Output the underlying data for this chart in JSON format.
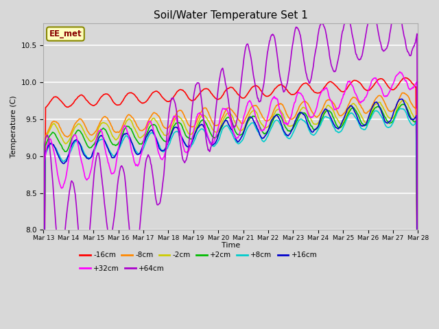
{
  "title": "Soil/Water Temperature Set 1",
  "xlabel": "Time",
  "ylabel": "Temperature (C)",
  "ylim": [
    8.0,
    10.8
  ],
  "n_days": 15,
  "background_color": "#d8d8d8",
  "plot_bg_color": "#d8d8d8",
  "grid_color": "#ffffff",
  "label_box_text": "EE_met",
  "label_box_facecolor": "#ffffc0",
  "label_box_edgecolor": "#888800",
  "series": [
    {
      "label": "-16cm",
      "color": "#ff0000"
    },
    {
      "label": "-8cm",
      "color": "#ff8800"
    },
    {
      "label": "-2cm",
      "color": "#cccc00"
    },
    {
      "label": "+2cm",
      "color": "#00bb00"
    },
    {
      "label": "+8cm",
      "color": "#00cccc"
    },
    {
      "label": "+16cm",
      "color": "#0000cc"
    },
    {
      "label": "+32cm",
      "color": "#ff00ff"
    },
    {
      "label": "+64cm",
      "color": "#aa00cc"
    }
  ],
  "xtick_labels": [
    "Mar 13",
    "Mar 14",
    "Mar 15",
    "Mar 16",
    "Mar 17",
    "Mar 18",
    "Mar 19",
    "Mar 20",
    "Mar 21",
    "Mar 22",
    "Mar 23",
    "Mar 24",
    "Mar 25",
    "Mar 26",
    "Mar 27",
    "Mar 28"
  ]
}
